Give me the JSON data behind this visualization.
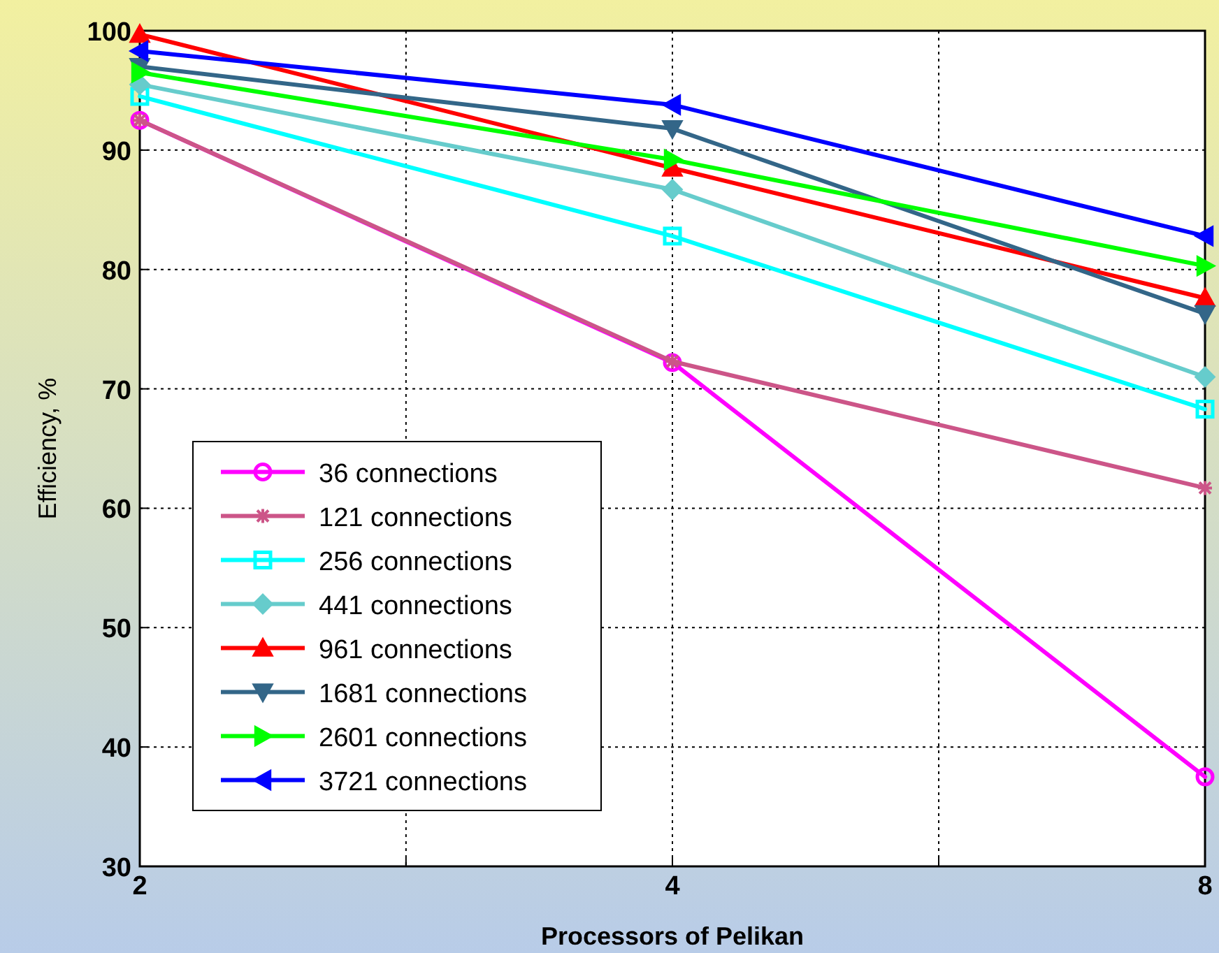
{
  "chart_data": {
    "type": "line",
    "xlabel": "Processors of Pelikan",
    "ylabel": "Efficiency, %",
    "x": [
      2,
      4,
      8
    ],
    "log": "x",
    "xlim": [
      2,
      8
    ],
    "xticks": [
      2,
      {
        "value": 2.828,
        "label": null
      },
      4,
      {
        "value": 5.657,
        "label": null
      },
      8
    ],
    "ylim": [
      30,
      100
    ],
    "yticks": [
      30,
      40,
      50,
      60,
      70,
      80,
      90,
      100
    ],
    "grid": true,
    "legend": "bottom left",
    "line_style": "solid",
    "series": [
      {
        "name": "36 connections",
        "color": "#ff00ff",
        "marker": "circle",
        "values": [
          92.5,
          72.2,
          37.5
        ]
      },
      {
        "name": "121 connections",
        "color": "#cc5588",
        "marker": "cross",
        "values": [
          92.5,
          72.3,
          61.7
        ]
      },
      {
        "name": "256 connections",
        "color": "#00ffff",
        "marker": "square",
        "values": [
          94.5,
          82.8,
          68.3
        ]
      },
      {
        "name": "441 connections",
        "color": "#66cccc",
        "marker": "diamond",
        "values": [
          95.5,
          86.7,
          71.0
        ]
      },
      {
        "name": "961 connections",
        "color": "#ff0000",
        "marker": "triangle",
        "values": [
          99.7,
          88.5,
          77.6
        ]
      },
      {
        "name": "1681 connections",
        "color": "#336688",
        "marker": "triangle-down",
        "values": [
          97.0,
          91.8,
          76.3
        ]
      },
      {
        "name": "2601 connections",
        "color": "#00ff00",
        "marker": "triangle-right",
        "values": [
          96.5,
          89.2,
          80.3
        ]
      },
      {
        "name": "3721 connections",
        "color": "#0000ff",
        "marker": "triangle-left",
        "values": [
          98.3,
          93.8,
          82.8
        ]
      }
    ]
  }
}
